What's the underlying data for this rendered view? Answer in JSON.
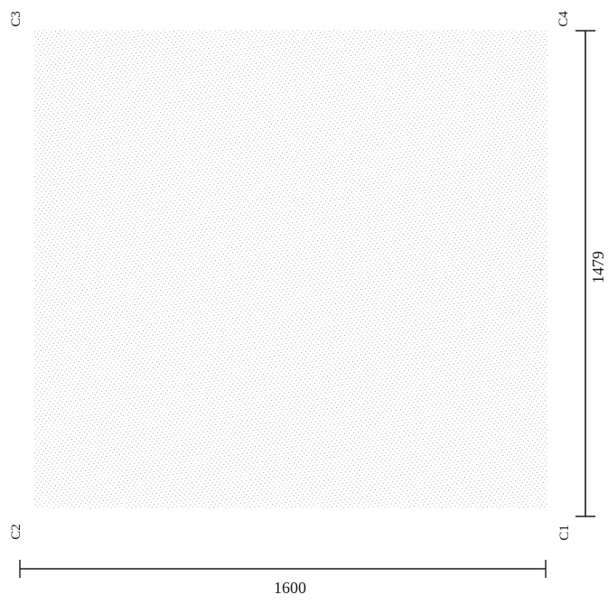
{
  "corners": {
    "c1": "C1",
    "c2": "C2",
    "c3": "C3",
    "c4": "C4"
  },
  "dimensions": {
    "width": "1600",
    "height": "1479"
  },
  "colors": {
    "ink": "#1a1a1a",
    "dots": "#8a8a8a",
    "background": "#ffffff"
  }
}
